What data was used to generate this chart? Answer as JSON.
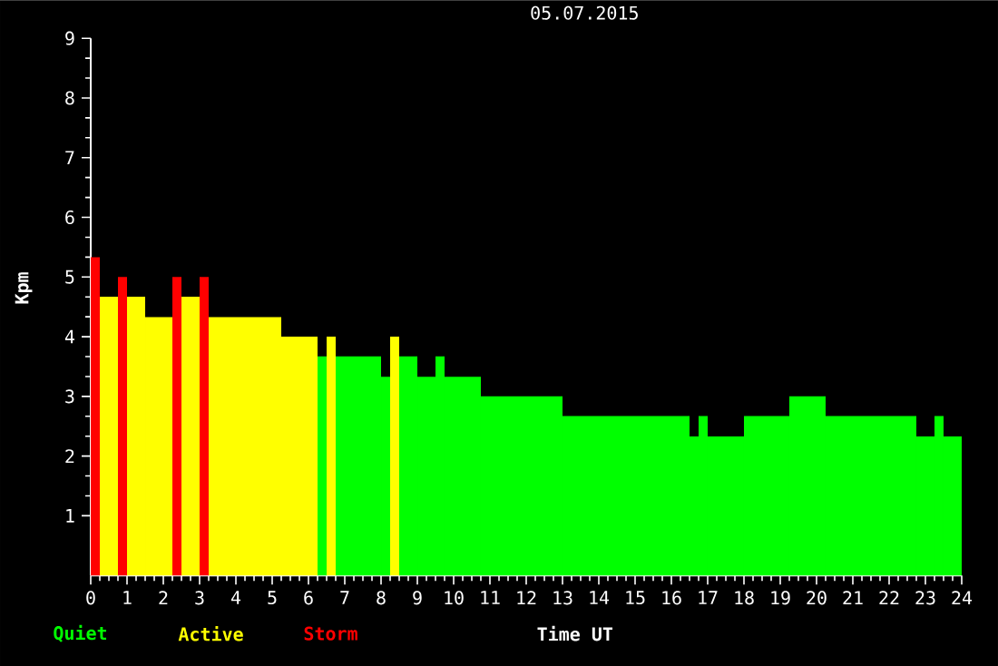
{
  "chart_data": {
    "type": "histogram",
    "title": "05.07.2015",
    "xlabel": "Time UT",
    "ylabel": "Kpm",
    "xlim": [
      0,
      24
    ],
    "xticks": [
      0,
      1,
      2,
      3,
      4,
      5,
      6,
      7,
      8,
      9,
      10,
      11,
      12,
      13,
      14,
      15,
      16,
      17,
      18,
      19,
      20,
      21,
      22,
      23,
      24
    ],
    "ylim": [
      0,
      9
    ],
    "yticks": [
      1,
      2,
      3,
      4,
      5,
      6,
      7,
      8,
      9
    ],
    "legend": "bottom left",
    "bins": [
      0,
      0.25,
      0.75,
      1,
      1.5,
      2.25,
      2.5,
      3,
      3.25,
      5.25,
      6.25,
      6.5,
      6.75,
      8,
      8.25,
      8.5,
      9,
      9.5,
      9.75,
      10.75,
      13,
      16.5,
      16.75,
      17,
      18,
      19.25,
      20.25,
      22.75,
      23.25,
      23.5,
      24
    ],
    "series": [
      {
        "name": "Quiet",
        "color": "#00ff00",
        "values": [
          null,
          null,
          null,
          null,
          null,
          null,
          null,
          null,
          null,
          null,
          3.67,
          null,
          3.67,
          3.33,
          null,
          3.67,
          3.33,
          3.67,
          3.33,
          3,
          2.67,
          2.33,
          2.67,
          2.33,
          2.67,
          3,
          2.67,
          2.33,
          2.67,
          2.33
        ]
      },
      {
        "name": "Active",
        "color": "#ffff00",
        "values": [
          null,
          4.67,
          null,
          4.67,
          4.33,
          null,
          4.67,
          null,
          4.33,
          4,
          null,
          4,
          null,
          null,
          4,
          null,
          null,
          null,
          null,
          null,
          null,
          null,
          null,
          null,
          null,
          null,
          null,
          null,
          null,
          null
        ]
      },
      {
        "name": "Storm",
        "color": "#ff0000",
        "values": [
          5.33,
          null,
          5,
          null,
          null,
          5,
          null,
          5,
          null,
          null,
          null,
          null,
          null,
          null,
          null,
          null,
          null,
          null,
          null,
          null,
          null,
          null,
          null,
          null,
          null,
          null,
          null,
          null,
          null,
          null
        ]
      }
    ]
  }
}
